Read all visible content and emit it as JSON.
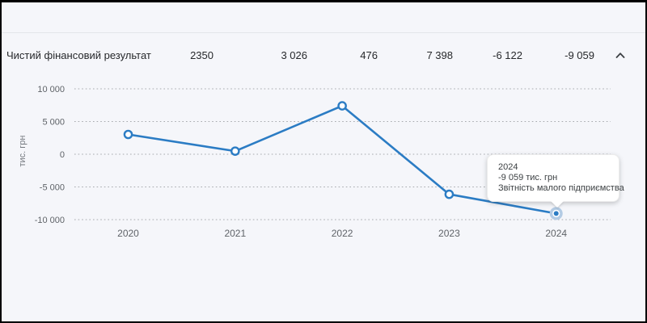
{
  "header": {
    "label": "Чистий фінансовий результат",
    "values": [
      "2350",
      "3 026",
      "476",
      "7 398",
      "-6 122",
      "-9 059"
    ],
    "collapse_icon": "chevron-up"
  },
  "chart_data": {
    "type": "line",
    "x": [
      "2020",
      "2021",
      "2022",
      "2023",
      "2024"
    ],
    "series": [
      {
        "name": "Чистий фінансовий результат",
        "values": [
          3026,
          476,
          7398,
          -6122,
          -9059
        ]
      }
    ],
    "ylabel": "тис. грн",
    "ylim": [
      -10000,
      10000
    ],
    "yticks": [
      10000,
      5000,
      0,
      -5000,
      -10000
    ],
    "ytick_labels": [
      "10 000",
      "5 000",
      "0",
      "-5 000",
      "-10 000"
    ],
    "grid": "dotted-horizontal",
    "legend": "none",
    "selected_x": "2024",
    "colors": {
      "line": "#2b7cc4",
      "point_fill": "#ffffff",
      "selected_halo": "#b3cbe4",
      "grid": "#a6a9ad",
      "tick_text": "#5f6368"
    }
  },
  "tooltip": {
    "year": "2024",
    "value": "-9 059 тис. грн",
    "source": "Звітність малого підприємства"
  }
}
